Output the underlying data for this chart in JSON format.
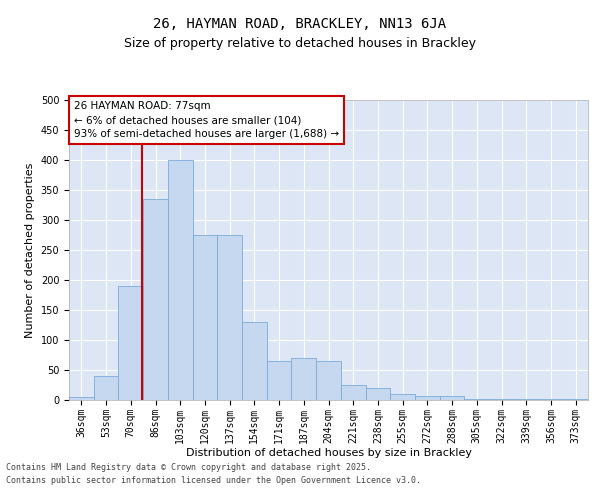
{
  "title": "26, HAYMAN ROAD, BRACKLEY, NN13 6JA",
  "subtitle": "Size of property relative to detached houses in Brackley",
  "xlabel": "Distribution of detached houses by size in Brackley",
  "ylabel": "Number of detached properties",
  "categories": [
    "36sqm",
    "53sqm",
    "70sqm",
    "86sqm",
    "103sqm",
    "120sqm",
    "137sqm",
    "154sqm",
    "171sqm",
    "187sqm",
    "204sqm",
    "221sqm",
    "238sqm",
    "255sqm",
    "272sqm",
    "288sqm",
    "305sqm",
    "322sqm",
    "339sqm",
    "356sqm",
    "373sqm"
  ],
  "values": [
    5,
    40,
    190,
    335,
    400,
    275,
    275,
    130,
    65,
    70,
    65,
    25,
    20,
    10,
    7,
    7,
    2,
    1,
    1,
    1,
    2
  ],
  "bar_color": "#c5d8f0",
  "bar_edge_color": "#7aabda",
  "background_color": "#dce6f5",
  "vline_color": "#cc0000",
  "annotation_text": "26 HAYMAN ROAD: 77sqm\n← 6% of detached houses are smaller (104)\n93% of semi-detached houses are larger (1,688) →",
  "annotation_box_color": "#cc0000",
  "ylim": [
    0,
    500
  ],
  "yticks": [
    0,
    50,
    100,
    150,
    200,
    250,
    300,
    350,
    400,
    450,
    500
  ],
  "footer_line1": "Contains HM Land Registry data © Crown copyright and database right 2025.",
  "footer_line2": "Contains public sector information licensed under the Open Government Licence v3.0.",
  "title_fontsize": 10,
  "subtitle_fontsize": 9,
  "axis_label_fontsize": 8,
  "tick_fontsize": 7,
  "annotation_fontsize": 7.5
}
